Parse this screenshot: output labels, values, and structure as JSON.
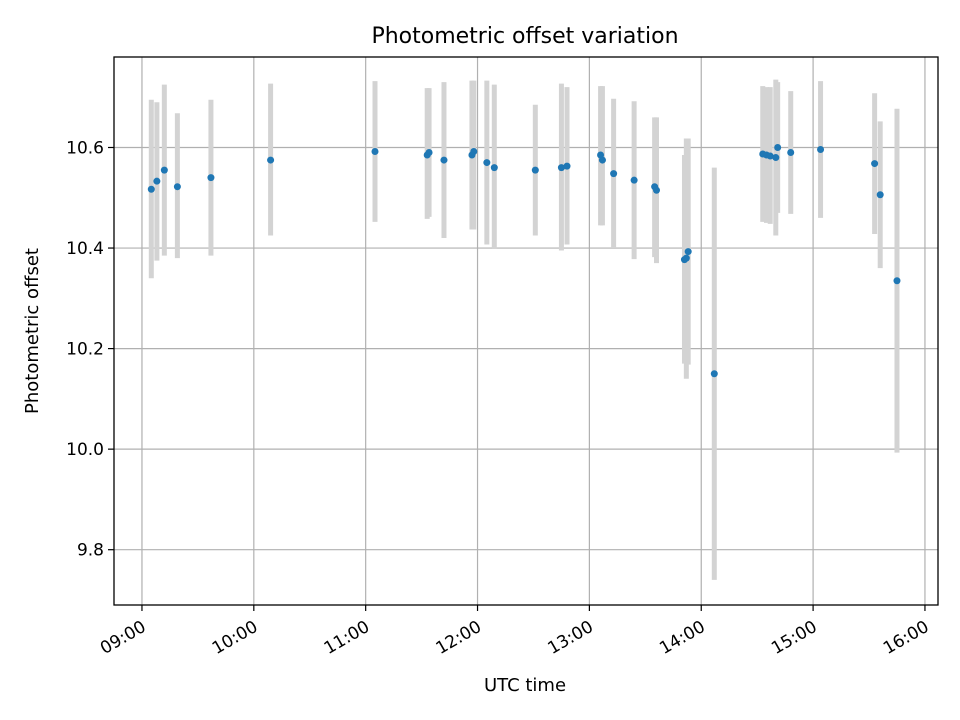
{
  "chart_data": {
    "type": "scatter",
    "title": "Photometric offset variation",
    "xlabel": "UTC time",
    "ylabel": "Photometric offset",
    "xlim": [
      "08:45",
      "16:07"
    ],
    "ylim": [
      9.69,
      10.78
    ],
    "x_ticks": [
      "09:00",
      "10:00",
      "11:00",
      "12:00",
      "13:00",
      "14:00",
      "15:00",
      "16:00"
    ],
    "y_ticks": [
      9.8,
      10.0,
      10.2,
      10.4,
      10.6
    ],
    "y_tick_labels": [
      "9.8",
      "10.0",
      "10.2",
      "10.4",
      "10.6"
    ],
    "grid": true,
    "colors": {
      "marker": "#1f77b4",
      "errorbar": "#d3d3d3",
      "grid": "#b0b0b0"
    },
    "points": [
      {
        "x": "09:05",
        "y": 10.517,
        "lo": 10.34,
        "hi": 10.695
      },
      {
        "x": "09:08",
        "y": 10.533,
        "lo": 10.375,
        "hi": 10.69
      },
      {
        "x": "09:12",
        "y": 10.555,
        "lo": 10.385,
        "hi": 10.725
      },
      {
        "x": "09:19",
        "y": 10.522,
        "lo": 10.38,
        "hi": 10.668
      },
      {
        "x": "09:37",
        "y": 10.54,
        "lo": 10.385,
        "hi": 10.695
      },
      {
        "x": "10:09",
        "y": 10.575,
        "lo": 10.425,
        "hi": 10.727
      },
      {
        "x": "11:05",
        "y": 10.592,
        "lo": 10.452,
        "hi": 10.732
      },
      {
        "x": "11:33",
        "y": 10.585,
        "lo": 10.458,
        "hi": 10.718
      },
      {
        "x": "11:34",
        "y": 10.59,
        "lo": 10.462,
        "hi": 10.718
      },
      {
        "x": "11:42",
        "y": 10.575,
        "lo": 10.42,
        "hi": 10.73
      },
      {
        "x": "11:57",
        "y": 10.585,
        "lo": 10.437,
        "hi": 10.733
      },
      {
        "x": "11:58",
        "y": 10.592,
        "lo": 10.437,
        "hi": 10.733
      },
      {
        "x": "12:05",
        "y": 10.57,
        "lo": 10.407,
        "hi": 10.733
      },
      {
        "x": "12:09",
        "y": 10.56,
        "lo": 10.398,
        "hi": 10.725
      },
      {
        "x": "12:31",
        "y": 10.555,
        "lo": 10.425,
        "hi": 10.685
      },
      {
        "x": "12:45",
        "y": 10.56,
        "lo": 10.395,
        "hi": 10.727
      },
      {
        "x": "12:48",
        "y": 10.563,
        "lo": 10.407,
        "hi": 10.72
      },
      {
        "x": "13:06",
        "y": 10.585,
        "lo": 10.445,
        "hi": 10.722
      },
      {
        "x": "13:07",
        "y": 10.575,
        "lo": 10.445,
        "hi": 10.722
      },
      {
        "x": "13:13",
        "y": 10.548,
        "lo": 10.4,
        "hi": 10.697
      },
      {
        "x": "13:24",
        "y": 10.535,
        "lo": 10.378,
        "hi": 10.692
      },
      {
        "x": "13:35",
        "y": 10.522,
        "lo": 10.382,
        "hi": 10.66
      },
      {
        "x": "13:36",
        "y": 10.515,
        "lo": 10.37,
        "hi": 10.66
      },
      {
        "x": "13:51",
        "y": 10.377,
        "lo": 10.17,
        "hi": 10.585
      },
      {
        "x": "13:52",
        "y": 10.38,
        "lo": 10.14,
        "hi": 10.618
      },
      {
        "x": "13:53",
        "y": 10.393,
        "lo": 10.168,
        "hi": 10.618
      },
      {
        "x": "14:07",
        "y": 10.15,
        "lo": 9.74,
        "hi": 10.56
      },
      {
        "x": "14:33",
        "y": 10.587,
        "lo": 10.452,
        "hi": 10.722
      },
      {
        "x": "14:35",
        "y": 10.585,
        "lo": 10.45,
        "hi": 10.72
      },
      {
        "x": "14:37",
        "y": 10.583,
        "lo": 10.448,
        "hi": 10.72
      },
      {
        "x": "14:40",
        "y": 10.58,
        "lo": 10.425,
        "hi": 10.735
      },
      {
        "x": "14:41",
        "y": 10.6,
        "lo": 10.47,
        "hi": 10.73
      },
      {
        "x": "14:48",
        "y": 10.59,
        "lo": 10.468,
        "hi": 10.712
      },
      {
        "x": "15:04",
        "y": 10.596,
        "lo": 10.46,
        "hi": 10.732
      },
      {
        "x": "15:33",
        "y": 10.568,
        "lo": 10.428,
        "hi": 10.708
      },
      {
        "x": "15:36",
        "y": 10.506,
        "lo": 10.36,
        "hi": 10.652
      },
      {
        "x": "15:45",
        "y": 10.335,
        "lo": 9.993,
        "hi": 10.677
      }
    ]
  }
}
